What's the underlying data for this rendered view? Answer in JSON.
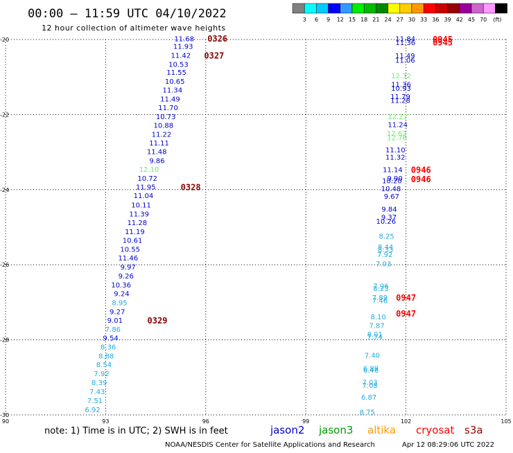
{
  "title": "00:00 – 11:59 UTC 04/10/2022",
  "subtitle": "12 hour collection of altimeter wave heights",
  "legend": {
    "colors": [
      "#808080",
      "#00ffff",
      "#00ccff",
      "#0000ff",
      "#3399ff",
      "#00ee00",
      "#00bb00",
      "#008800",
      "#ffff00",
      "#ffcc00",
      "#ff9900",
      "#ff0000",
      "#cc0000",
      "#990000",
      "#990099",
      "#cc66cc",
      "#ff99ff",
      "#000000"
    ],
    "labels": [
      "3",
      "6",
      "9",
      "12",
      "15",
      "18",
      "21",
      "24",
      "27",
      "30",
      "33",
      "36",
      "39",
      "42",
      "45",
      "70"
    ],
    "unit": "(ft)"
  },
  "axes": {
    "x_ticks": [
      "90",
      "93",
      "96",
      "99",
      "102",
      "105"
    ],
    "y_ticks": [
      "-20",
      "-22",
      "-24",
      "-26",
      "-28",
      "-30"
    ],
    "xlim": [
      90,
      105
    ],
    "ylim": [
      -30,
      -20
    ]
  },
  "colors": {
    "blue": "#0000cc",
    "cyan": "#22aadd",
    "green": "#66ee66",
    "darkred": "#880000",
    "red": "#ff0000"
  },
  "left_track": {
    "values": [
      {
        "t": "11.68",
        "lon": 95.65,
        "lat": -19.98,
        "c": "blue"
      },
      {
        "t": "11.93",
        "lon": 95.62,
        "lat": -20.18,
        "c": "blue"
      },
      {
        "t": "11.42",
        "lon": 95.55,
        "lat": -20.42,
        "c": "blue"
      },
      {
        "t": "10.53",
        "lon": 95.48,
        "lat": -20.66,
        "c": "blue"
      },
      {
        "t": "11.55",
        "lon": 95.42,
        "lat": -20.88,
        "c": "blue"
      },
      {
        "t": "10.65",
        "lon": 95.37,
        "lat": -21.12,
        "c": "blue"
      },
      {
        "t": "11.34",
        "lon": 95.3,
        "lat": -21.35,
        "c": "blue"
      },
      {
        "t": "11.49",
        "lon": 95.23,
        "lat": -21.59,
        "c": "blue"
      },
      {
        "t": "11.70",
        "lon": 95.17,
        "lat": -21.82,
        "c": "blue"
      },
      {
        "t": "10.73",
        "lon": 95.1,
        "lat": -22.06,
        "c": "blue"
      },
      {
        "t": "10.88",
        "lon": 95.03,
        "lat": -22.29,
        "c": "blue"
      },
      {
        "t": "11.22",
        "lon": 94.97,
        "lat": -22.53,
        "c": "blue"
      },
      {
        "t": "11.11",
        "lon": 94.9,
        "lat": -22.76,
        "c": "blue"
      },
      {
        "t": "11.48",
        "lon": 94.83,
        "lat": -22.99,
        "c": "blue"
      },
      {
        "t": "9.86",
        "lon": 94.77,
        "lat": -23.23,
        "c": "blue"
      },
      {
        "t": "12.10",
        "lon": 94.6,
        "lat": -23.46,
        "c": "green"
      },
      {
        "t": "10.72",
        "lon": 94.55,
        "lat": -23.7,
        "c": "blue"
      },
      {
        "t": "11.95",
        "lon": 94.5,
        "lat": -23.93,
        "c": "blue"
      },
      {
        "t": "11.04",
        "lon": 94.43,
        "lat": -24.16,
        "c": "blue"
      },
      {
        "t": "10.11",
        "lon": 94.36,
        "lat": -24.41,
        "c": "blue"
      },
      {
        "t": "11.39",
        "lon": 94.3,
        "lat": -24.65,
        "c": "blue"
      },
      {
        "t": "11.28",
        "lon": 94.24,
        "lat": -24.88,
        "c": "blue"
      },
      {
        "t": "11.19",
        "lon": 94.17,
        "lat": -25.12,
        "c": "blue"
      },
      {
        "t": "10.61",
        "lon": 94.1,
        "lat": -25.35,
        "c": "blue"
      },
      {
        "t": "10.55",
        "lon": 94.03,
        "lat": -25.59,
        "c": "blue"
      },
      {
        "t": "11.46",
        "lon": 93.97,
        "lat": -25.82,
        "c": "blue"
      },
      {
        "t": "9.97",
        "lon": 93.9,
        "lat": -26.06,
        "c": "blue"
      },
      {
        "t": "9.26",
        "lon": 93.84,
        "lat": -26.3,
        "c": "blue"
      },
      {
        "t": "10.36",
        "lon": 93.76,
        "lat": -26.54,
        "c": "blue"
      },
      {
        "t": "9.24",
        "lon": 93.71,
        "lat": -26.77,
        "c": "blue"
      },
      {
        "t": "8.95",
        "lon": 93.65,
        "lat": -27.01,
        "c": "cyan"
      },
      {
        "t": "9.27",
        "lon": 93.58,
        "lat": -27.25,
        "c": "blue"
      },
      {
        "t": "9.01",
        "lon": 93.51,
        "lat": -27.48,
        "c": "blue"
      },
      {
        "t": "7.86",
        "lon": 93.45,
        "lat": -27.72,
        "c": "cyan"
      },
      {
        "t": "9.54",
        "lon": 93.38,
        "lat": -27.95,
        "c": "blue"
      },
      {
        "t": "8.36",
        "lon": 93.31,
        "lat": -28.19,
        "c": "cyan"
      },
      {
        "t": "8.88",
        "lon": 93.25,
        "lat": -28.43,
        "c": "cyan"
      },
      {
        "t": "8.54",
        "lon": 93.18,
        "lat": -28.66,
        "c": "cyan"
      },
      {
        "t": "7.92",
        "lon": 93.11,
        "lat": -28.9,
        "c": "cyan"
      },
      {
        "t": "8.39",
        "lon": 93.04,
        "lat": -29.14,
        "c": "cyan"
      },
      {
        "t": "7.43",
        "lon": 92.98,
        "lat": -29.38,
        "c": "cyan"
      },
      {
        "t": "7.51",
        "lon": 92.91,
        "lat": -29.62,
        "c": "cyan"
      },
      {
        "t": "6.92",
        "lon": 92.84,
        "lat": -29.86,
        "c": "cyan"
      }
    ],
    "times": [
      {
        "t": "0326",
        "lon": 96.35,
        "lat": -19.97,
        "c": "darkred"
      },
      {
        "t": "0327",
        "lon": 96.25,
        "lat": -20.42,
        "c": "darkred"
      },
      {
        "t": "0328",
        "lon": 95.55,
        "lat": -23.93,
        "c": "darkred"
      },
      {
        "t": "0329",
        "lon": 94.55,
        "lat": -27.48,
        "c": "darkred"
      }
    ]
  },
  "right_track": {
    "values": [
      {
        "t": "11.84",
        "lon": 102.28,
        "lat": -19.98,
        "c": "blue"
      },
      {
        "t": "11.36",
        "lon": 102.28,
        "lat": -20.08,
        "c": "blue"
      },
      {
        "t": "11.49",
        "lon": 102.27,
        "lat": -20.43,
        "c": "blue"
      },
      {
        "t": "11.06",
        "lon": 102.27,
        "lat": -20.55,
        "c": "blue"
      },
      {
        "t": "12.32",
        "lon": 102.15,
        "lat": -20.97,
        "c": "green"
      },
      {
        "t": "11.36",
        "lon": 102.15,
        "lat": -21.2,
        "c": "blue"
      },
      {
        "t": "10.93",
        "lon": 102.15,
        "lat": -21.3,
        "c": "blue"
      },
      {
        "t": "11.79",
        "lon": 102.13,
        "lat": -21.52,
        "c": "blue"
      },
      {
        "t": "11.28",
        "lon": 102.13,
        "lat": -21.62,
        "c": "blue"
      },
      {
        "t": "12.27",
        "lon": 102.05,
        "lat": -22.06,
        "c": "green"
      },
      {
        "t": "11.24",
        "lon": 102.05,
        "lat": -22.27,
        "c": "blue"
      },
      {
        "t": "12.62",
        "lon": 102.02,
        "lat": -22.5,
        "c": "green"
      },
      {
        "t": "12.76",
        "lon": 102.03,
        "lat": -22.62,
        "c": "green"
      },
      {
        "t": "11.10",
        "lon": 101.98,
        "lat": -22.94,
        "c": "blue"
      },
      {
        "t": "11.32",
        "lon": 101.98,
        "lat": -23.14,
        "c": "blue"
      },
      {
        "t": "11.14",
        "lon": 101.9,
        "lat": -23.47,
        "c": "blue"
      },
      {
        "t": "9.90",
        "lon": 101.9,
        "lat": -23.7,
        "c": "blue"
      },
      {
        "t": "10.20",
        "lon": 101.88,
        "lat": -23.76,
        "c": "blue"
      },
      {
        "t": "10.48",
        "lon": 101.85,
        "lat": -23.98,
        "c": "blue"
      },
      {
        "t": "9.67",
        "lon": 101.8,
        "lat": -24.18,
        "c": "blue"
      },
      {
        "t": "9.84",
        "lon": 101.73,
        "lat": -24.52,
        "c": "blue"
      },
      {
        "t": "9.37",
        "lon": 101.72,
        "lat": -24.73,
        "c": "blue"
      },
      {
        "t": "10.26",
        "lon": 101.7,
        "lat": -24.84,
        "c": "blue"
      },
      {
        "t": "8.25",
        "lon": 101.65,
        "lat": -25.24,
        "c": "cyan"
      },
      {
        "t": "8.44",
        "lon": 101.62,
        "lat": -25.53,
        "c": "cyan"
      },
      {
        "t": "8.33",
        "lon": 101.62,
        "lat": -25.6,
        "c": "cyan"
      },
      {
        "t": "7.92",
        "lon": 101.6,
        "lat": -25.73,
        "c": "cyan"
      },
      {
        "t": "7.93",
        "lon": 101.56,
        "lat": -25.98,
        "c": "cyan"
      },
      {
        "t": "7.96",
        "lon": 101.48,
        "lat": -26.57,
        "c": "cyan"
      },
      {
        "t": "8.23",
        "lon": 101.48,
        "lat": -26.63,
        "c": "cyan"
      },
      {
        "t": "7.89",
        "lon": 101.45,
        "lat": -26.87,
        "c": "cyan"
      },
      {
        "t": "7.46",
        "lon": 101.45,
        "lat": -26.96,
        "c": "cyan"
      },
      {
        "t": "8.10",
        "lon": 101.4,
        "lat": -27.39,
        "c": "cyan"
      },
      {
        "t": "7.87",
        "lon": 101.36,
        "lat": -27.62,
        "c": "cyan"
      },
      {
        "t": "8.01",
        "lon": 101.3,
        "lat": -27.85,
        "c": "cyan"
      },
      {
        "t": "7.74",
        "lon": 101.3,
        "lat": -27.92,
        "c": "cyan"
      },
      {
        "t": "7.40",
        "lon": 101.22,
        "lat": -28.41,
        "c": "cyan"
      },
      {
        "t": "6.89",
        "lon": 101.18,
        "lat": -28.76,
        "c": "cyan"
      },
      {
        "t": "6.46",
        "lon": 101.18,
        "lat": -28.81,
        "c": "cyan"
      },
      {
        "t": "7.03",
        "lon": 101.15,
        "lat": -29.13,
        "c": "cyan"
      },
      {
        "t": "7.08",
        "lon": 101.15,
        "lat": -29.22,
        "c": "cyan"
      },
      {
        "t": "6.87",
        "lon": 101.12,
        "lat": -29.53,
        "c": "cyan"
      },
      {
        "t": "8.75",
        "lon": 101.07,
        "lat": -29.93,
        "c": "cyan"
      }
    ],
    "times": [
      {
        "t": "0945",
        "lon": 103.1,
        "lat": -19.99,
        "c": "red"
      },
      {
        "t": "0945",
        "lon": 103.1,
        "lat": -20.07,
        "c": "red"
      },
      {
        "t": "0946",
        "lon": 102.45,
        "lat": -23.47,
        "c": "red"
      },
      {
        "t": "0946",
        "lon": 102.45,
        "lat": -23.72,
        "c": "red"
      },
      {
        "t": "0947",
        "lon": 102.0,
        "lat": -26.87,
        "c": "red"
      },
      {
        "t": "0947",
        "lon": 102.0,
        "lat": -27.3,
        "c": "red"
      }
    ]
  },
  "note": "note:  1) Time is in UTC;  2) SWH is in feet",
  "satellites": [
    {
      "name": "jason2",
      "color": "#0000cc"
    },
    {
      "name": "jason3",
      "color": "#009900"
    },
    {
      "name": "altika",
      "color": "#ff9900"
    },
    {
      "name": "cryosat",
      "color": "#ff0000"
    },
    {
      "name": "s3a",
      "color": "#990000"
    }
  ],
  "footer": {
    "center": "NOAA/NESDIS Center for Satellite Applications and Research",
    "timestamp": "Apr 12 08:29:06 UTC 2022"
  }
}
